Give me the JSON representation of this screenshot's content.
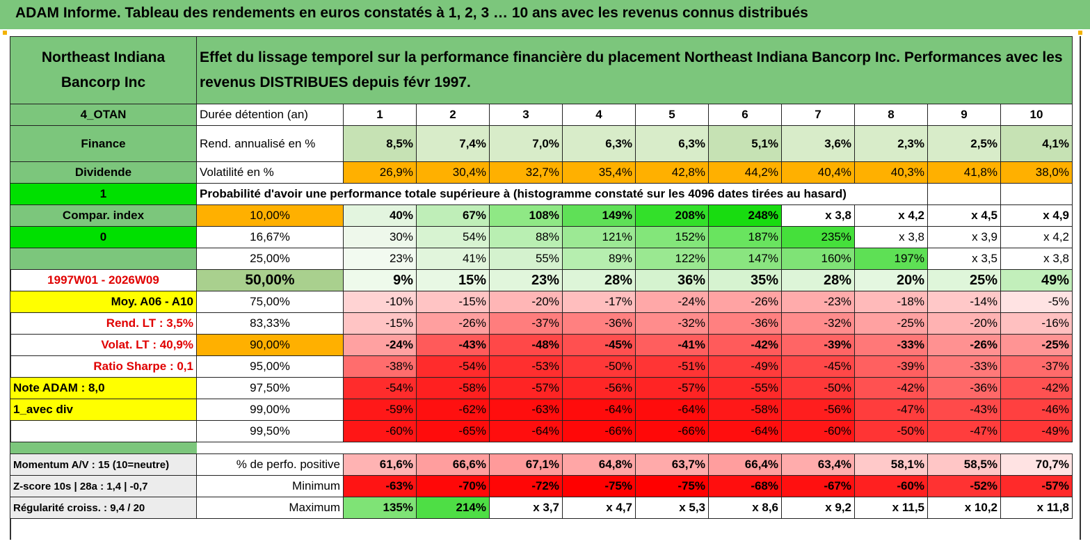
{
  "title": "ADAM Informe. Tableau des rendements en euros constatés à 1, 2, 3 … 10 ans avec les revenus connus distribués",
  "company": "Northeast Indiana Bancorp Inc",
  "header_text": "Effet du lissage temporel sur la performance financière du placement Northeast Indiana Bancorp Inc. Performances avec les revenus DISTRIBUES depuis févr 1997.",
  "side": {
    "code": "4_OTAN",
    "sector": "Finance",
    "type": "Dividende",
    "flag1": "1",
    "compar": "Compar. index",
    "flag0": "0",
    "period": "1997W01 - 2026W09",
    "moy": "Moy. A06 - A10",
    "rend_lt": "Rend. LT :   3,5%",
    "volat_lt": "Volat. LT :   40,9%",
    "sharpe": "Ratio Sharpe :   0,1",
    "note": "Note ADAM : 8,0",
    "avec_div": "1_avec div",
    "momentum": "Momentum A/V : 15 (10=neutre)",
    "zscore": "Z-score 10s | 28a : 1,4 | -0,7",
    "regularite": "Régularité croiss. : 9,4 / 20"
  },
  "labels": {
    "duree": "Durée détention (an)",
    "rend": "Rend. annualisé en %",
    "vol": "Volatilité en %",
    "proba": "Probabilité d'avoir une performance totale supérieure à (histogramme constaté sur les 4096 dates tirées au hasard)",
    "positive": "% de perfo. positive",
    "minimum": "Minimum",
    "maximum": "Maximum"
  },
  "years": [
    "1",
    "2",
    "3",
    "4",
    "5",
    "6",
    "7",
    "8",
    "9",
    "10"
  ],
  "rend": [
    "8,5%",
    "7,4%",
    "7,0%",
    "6,3%",
    "6,3%",
    "5,1%",
    "3,6%",
    "2,3%",
    "2,5%",
    "4,1%"
  ],
  "vol": [
    "26,9%",
    "30,4%",
    "32,7%",
    "35,4%",
    "42,8%",
    "44,2%",
    "40,4%",
    "40,3%",
    "41,8%",
    "38,0%"
  ],
  "prob_rows": [
    {
      "p": "10,00%",
      "v": [
        "40%",
        "67%",
        "108%",
        "149%",
        "208%",
        "248%",
        "x 3,8",
        "x 4,2",
        "x 4,5",
        "x 4,9"
      ]
    },
    {
      "p": "16,67%",
      "v": [
        "30%",
        "54%",
        "88%",
        "121%",
        "152%",
        "187%",
        "235%",
        "x 3,8",
        "x 3,9",
        "x 4,2"
      ]
    },
    {
      "p": "25,00%",
      "v": [
        "23%",
        "41%",
        "55%",
        "89%",
        "122%",
        "147%",
        "160%",
        "197%",
        "x 3,5",
        "x 3,8"
      ]
    },
    {
      "p": "50,00%",
      "v": [
        "9%",
        "15%",
        "23%",
        "28%",
        "36%",
        "35%",
        "28%",
        "20%",
        "25%",
        "49%"
      ]
    },
    {
      "p": "75,00%",
      "v": [
        "-10%",
        "-15%",
        "-20%",
        "-17%",
        "-24%",
        "-26%",
        "-23%",
        "-18%",
        "-14%",
        "-5%"
      ]
    },
    {
      "p": "83,33%",
      "v": [
        "-15%",
        "-26%",
        "-37%",
        "-36%",
        "-32%",
        "-36%",
        "-32%",
        "-25%",
        "-20%",
        "-16%"
      ]
    },
    {
      "p": "90,00%",
      "v": [
        "-24%",
        "-43%",
        "-48%",
        "-45%",
        "-41%",
        "-42%",
        "-39%",
        "-33%",
        "-26%",
        "-25%"
      ]
    },
    {
      "p": "95,00%",
      "v": [
        "-38%",
        "-54%",
        "-53%",
        "-50%",
        "-51%",
        "-49%",
        "-45%",
        "-39%",
        "-33%",
        "-37%"
      ]
    },
    {
      "p": "97,50%",
      "v": [
        "-54%",
        "-58%",
        "-57%",
        "-56%",
        "-57%",
        "-55%",
        "-50%",
        "-42%",
        "-36%",
        "-42%"
      ]
    },
    {
      "p": "99,00%",
      "v": [
        "-59%",
        "-62%",
        "-63%",
        "-64%",
        "-64%",
        "-58%",
        "-56%",
        "-47%",
        "-43%",
        "-46%"
      ]
    },
    {
      "p": "99,50%",
      "v": [
        "-60%",
        "-65%",
        "-64%",
        "-66%",
        "-66%",
        "-64%",
        "-60%",
        "-50%",
        "-47%",
        "-49%"
      ]
    }
  ],
  "positive": [
    "61,6%",
    "66,6%",
    "67,1%",
    "64,8%",
    "63,7%",
    "66,4%",
    "63,4%",
    "58,1%",
    "58,5%",
    "70,7%"
  ],
  "minimum": [
    "-63%",
    "-70%",
    "-72%",
    "-75%",
    "-75%",
    "-68%",
    "-67%",
    "-60%",
    "-52%",
    "-57%"
  ],
  "maximum": [
    "135%",
    "214%",
    "x 3,7",
    "x 4,7",
    "x 5,3",
    "x 8,6",
    "x 9,2",
    "x 11,5",
    "x 10,2",
    "x 11,8"
  ],
  "colors": {
    "rend": [
      "#c6e2b4",
      "#d8ecc9",
      "#d8ecc9",
      "#d8ecc9",
      "#d8ecc9",
      "#c6e2b4",
      "#d8ecc9",
      "#d8ecc9",
      "#d8ecc9",
      "#c6e2b4"
    ],
    "vol": "#ffb000",
    "prob": [
      [
        "#e3f5df",
        "#bfeeb8",
        "#8fe885",
        "#5fe057",
        "#33e02a",
        "#18dc10",
        "#ffffff",
        "#ffffff",
        "#ffffff",
        "#ffffff"
      ],
      [
        "#eef8eb",
        "#d7f3d1",
        "#b9efb2",
        "#9ce994",
        "#83e67a",
        "#69e45f",
        "#45e03b",
        "#ffffff",
        "#ffffff",
        "#ffffff"
      ],
      [
        "#f2faf0",
        "#e1f5dc",
        "#d4f2ce",
        "#b6eeaf",
        "#9ae891",
        "#8ae580",
        "#7fe376",
        "#5ee055",
        "#ffffff",
        "#ffffff"
      ],
      [
        "#eefaeb",
        "#e8f8e4",
        "#e1f6dc",
        "#ddf5d8",
        "#d5f3cf",
        "#d6f3d0",
        "#ddf5d8",
        "#e4f7e0",
        "#dff6da",
        "#c2efbb"
      ],
      [
        "#ffd3d3",
        "#ffc4c4",
        "#ffb6b6",
        "#ffbebe",
        "#ffa8a8",
        "#ffa3a3",
        "#ffabab",
        "#ffbaba",
        "#ffc8c8",
        "#ffe3e3"
      ],
      [
        "#ffc4c4",
        "#ff9f9f",
        "#ff7d7d",
        "#ff8080",
        "#ff8c8c",
        "#ff8080",
        "#ff8c8c",
        "#ffa1a1",
        "#ffb2b2",
        "#ffc0c0"
      ],
      [
        "#ffa1a1",
        "#ff5a5a",
        "#ff4848",
        "#ff5050",
        "#ff5e5e",
        "#ff5b5b",
        "#ff6565",
        "#ff7878",
        "#ff9191",
        "#ff9494"
      ],
      [
        "#ff6d6d",
        "#ff2c2c",
        "#ff2f2f",
        "#ff3838",
        "#ff3535",
        "#ff3c3c",
        "#ff4848",
        "#ff6060",
        "#ff7979",
        "#ff6b6b"
      ],
      [
        "#ff2c2c",
        "#ff2020",
        "#ff2424",
        "#ff2626",
        "#ff2424",
        "#ff2a2a",
        "#ff3838",
        "#ff5151",
        "#ff6868",
        "#ff5151"
      ],
      [
        "#ff1818",
        "#ff1010",
        "#ff0e0e",
        "#ff0c0c",
        "#ff0c0c",
        "#ff1818",
        "#ff1e1e",
        "#ff3d3d",
        "#ff4a4a",
        "#ff4040"
      ],
      [
        "#ff1616",
        "#ff0c0c",
        "#ff0e0e",
        "#ff0808",
        "#ff0808",
        "#ff0e0e",
        "#ff1616",
        "#ff3434",
        "#ff3d3d",
        "#ff3636"
      ]
    ],
    "positive": [
      "#ffb3b3",
      "#ff9e9e",
      "#ff9a9a",
      "#ffa6a6",
      "#ffaaaa",
      "#ff9e9e",
      "#ffacac",
      "#ffc9c9",
      "#ffc6c6",
      "#ffe3e3"
    ],
    "minimum": [
      "#ff1414",
      "#ff0808",
      "#ff0606",
      "#ff0000",
      "#ff0000",
      "#ff0e0e",
      "#ff1010",
      "#ff2020",
      "#ff3232",
      "#ff2a2a"
    ],
    "maximum": [
      "#7fe376",
      "#4ede45",
      "#ffffff",
      "#ffffff",
      "#ffffff",
      "#ffffff",
      "#ffffff",
      "#ffffff",
      "#ffffff",
      "#ffffff"
    ]
  }
}
